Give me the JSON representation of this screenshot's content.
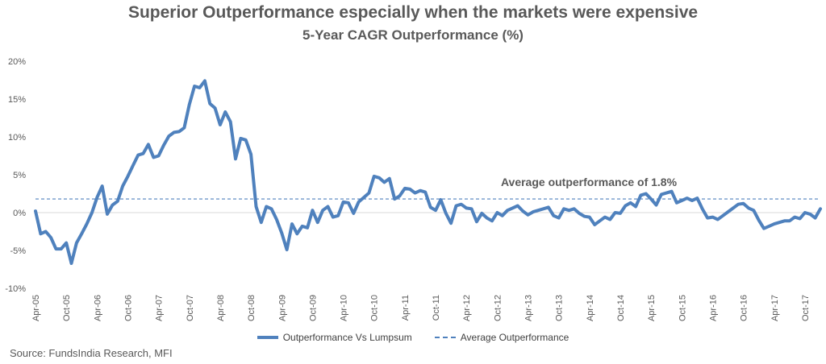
{
  "chart_data": {
    "type": "line",
    "title": "Superior Outperformance especially when the markets were expensive",
    "subtitle": "5-Year CAGR Outperformance (%)",
    "ylim": [
      -10,
      20
    ],
    "y_ticks": [
      "20%",
      "15%",
      "10%",
      "5%",
      "0%",
      "-5%",
      "-10%"
    ],
    "x_ticks": [
      "Apr-05",
      "Oct-05",
      "Apr-06",
      "Oct-06",
      "Apr-07",
      "Oct-07",
      "Apr-08",
      "Oct-08",
      "Apr-09",
      "Oct-09",
      "Apr-10",
      "Oct-10",
      "Apr-11",
      "Oct-11",
      "Apr-12",
      "Oct-12",
      "Apr-13",
      "Oct-13",
      "Apr-14",
      "Oct-14",
      "Apr-15",
      "Oct-15",
      "Apr-16",
      "Oct-16",
      "Apr-17",
      "Oct-17"
    ],
    "grid": false,
    "legend_position": "bottom",
    "series": [
      {
        "name": "Outperformance Vs Lumpsum",
        "color": "#4F81BD",
        "start": "Apr-05",
        "values": [
          0.2,
          -2.8,
          -2.5,
          -3.3,
          -4.8,
          -4.8,
          -4.0,
          -6.7,
          -4.0,
          -2.8,
          -1.5,
          0.0,
          2.0,
          3.5,
          -0.2,
          1.0,
          1.5,
          3.5,
          4.8,
          6.2,
          7.6,
          7.8,
          9.0,
          7.3,
          7.5,
          8.9,
          10.1,
          10.6,
          10.7,
          11.2,
          14.3,
          16.7,
          16.5,
          17.4,
          14.4,
          13.8,
          11.6,
          13.3,
          12.0,
          7.1,
          9.8,
          9.6,
          7.7,
          0.8,
          -1.3,
          0.8,
          0.5,
          -0.9,
          -2.7,
          -4.9,
          -1.5,
          -2.8,
          -1.8,
          -2.0,
          0.3,
          -1.3,
          0.3,
          0.8,
          -0.6,
          -0.4,
          1.4,
          1.3,
          -0.1,
          1.4,
          2.0,
          2.6,
          4.8,
          4.6,
          4.0,
          4.5,
          1.8,
          2.2,
          3.2,
          3.1,
          2.6,
          2.9,
          2.7,
          0.7,
          0.3,
          1.7,
          -0.1,
          -1.4,
          0.9,
          1.1,
          0.6,
          0.5,
          -1.2,
          -0.1,
          -0.7,
          -1.1,
          0.0,
          -0.4,
          0.3,
          0.6,
          0.9,
          0.2,
          -0.3,
          0.1,
          0.3,
          0.5,
          0.7,
          -0.4,
          -0.7,
          0.5,
          0.3,
          0.5,
          -0.1,
          -0.5,
          -0.6,
          -1.6,
          -1.1,
          -0.6,
          -0.9,
          0.0,
          -0.1,
          0.9,
          1.3,
          0.8,
          2.3,
          2.5,
          1.8,
          1.0,
          2.4,
          2.6,
          2.8,
          1.3,
          1.6,
          1.9,
          1.6,
          1.9,
          0.5,
          -0.7,
          -0.6,
          -0.9,
          -0.4,
          0.1,
          0.6,
          1.1,
          1.2,
          0.6,
          0.3,
          -1.0,
          -2.1,
          -1.8,
          -1.5,
          -1.3,
          -1.1,
          -1.1,
          -0.6,
          -0.8,
          0.0,
          -0.2,
          -0.7,
          0.5
        ]
      },
      {
        "name": "Average Outperformance",
        "color": "#4F81BD",
        "dashed": true,
        "value": 1.8
      }
    ],
    "annotation": "Average outperformance of 1.8%"
  },
  "source": "Source: FundsIndia Research, MFI"
}
